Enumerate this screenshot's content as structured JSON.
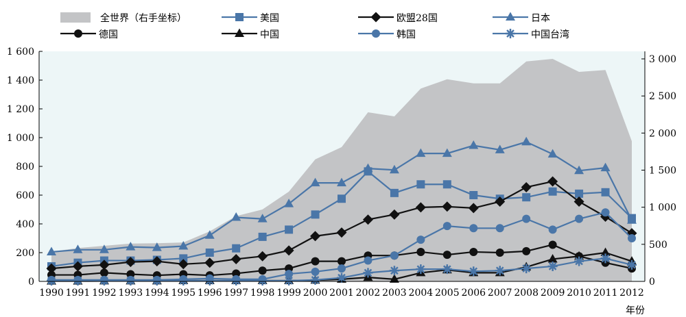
{
  "chart_data": {
    "type": "line",
    "title": "",
    "xlabel": "年份",
    "ylabel": "",
    "x": [
      1990,
      1991,
      1992,
      1993,
      1994,
      1995,
      1996,
      1997,
      1998,
      1999,
      2000,
      2001,
      2002,
      2003,
      2004,
      2005,
      2006,
      2007,
      2008,
      2009,
      2010,
      2011,
      2012
    ],
    "ylim": [
      0,
      1600
    ],
    "y2lim": [
      0,
      3000
    ],
    "y_ticks": [
      "0",
      "200",
      "400",
      "600",
      "800",
      "1 000",
      "1 200",
      "1 400",
      "1 600"
    ],
    "y2_ticks": [
      "0",
      "500",
      "1 000",
      "1 500",
      "2 000",
      "2 500",
      "3 000"
    ],
    "y_tick_values": [
      0,
      200,
      400,
      600,
      800,
      1000,
      1200,
      1400,
      1600
    ],
    "y2_tick_values": [
      0,
      500,
      1000,
      1500,
      2000,
      2500,
      3000
    ],
    "legend_position": "top",
    "area": {
      "name": "全世界（右手坐标）",
      "axis": "right",
      "color": "#c3c4c6",
      "values": [
        400,
        450,
        480,
        510,
        515,
        525,
        675,
        880,
        970,
        1210,
        1645,
        1810,
        2280,
        2225,
        2600,
        2725,
        2670,
        2670,
        2965,
        3000,
        2825,
        2850,
        1890
      ]
    },
    "series": [
      {
        "name": "美国",
        "marker": "square",
        "color": "#4a76a8",
        "values": [
          105,
          130,
          145,
          145,
          150,
          160,
          200,
          230,
          310,
          360,
          465,
          575,
          765,
          615,
          675,
          675,
          600,
          575,
          585,
          625,
          610,
          620,
          440
        ]
      },
      {
        "name": "欧盟28国",
        "marker": "diamond",
        "color": "#111111",
        "values": [
          90,
          105,
          115,
          135,
          140,
          120,
          130,
          155,
          175,
          215,
          315,
          340,
          430,
          465,
          515,
          520,
          510,
          555,
          655,
          695,
          555,
          450,
          335
        ]
      },
      {
        "name": "日本",
        "marker": "triangle",
        "color": "#4a76a8",
        "values": [
          205,
          220,
          220,
          240,
          235,
          245,
          320,
          445,
          435,
          540,
          685,
          685,
          785,
          775,
          890,
          890,
          945,
          915,
          970,
          885,
          770,
          790,
          425
        ]
      },
      {
        "name": "德国",
        "marker": "circle",
        "color": "#111111",
        "values": [
          45,
          45,
          60,
          50,
          42,
          50,
          42,
          55,
          75,
          90,
          140,
          140,
          180,
          180,
          205,
          185,
          205,
          200,
          210,
          255,
          175,
          130,
          90
        ]
      },
      {
        "name": "中国",
        "marker": "triangle",
        "color": "#111111",
        "values": [
          2,
          2,
          3,
          3,
          3,
          5,
          5,
          5,
          5,
          5,
          8,
          15,
          28,
          15,
          60,
          80,
          60,
          60,
          100,
          155,
          175,
          200,
          140
        ]
      },
      {
        "name": "韩国",
        "marker": "circle",
        "color": "#4a76a8",
        "values": [
          10,
          10,
          10,
          10,
          10,
          15,
          20,
          15,
          15,
          52,
          67,
          90,
          145,
          180,
          290,
          385,
          370,
          370,
          435,
          360,
          435,
          480,
          300
        ]
      },
      {
        "name": "中国台湾",
        "marker": "star",
        "color": "#4a76a8",
        "values": [
          5,
          5,
          5,
          5,
          5,
          5,
          5,
          5,
          5,
          5,
          10,
          25,
          60,
          75,
          85,
          85,
          70,
          75,
          90,
          105,
          140,
          160,
          115
        ]
      }
    ]
  }
}
